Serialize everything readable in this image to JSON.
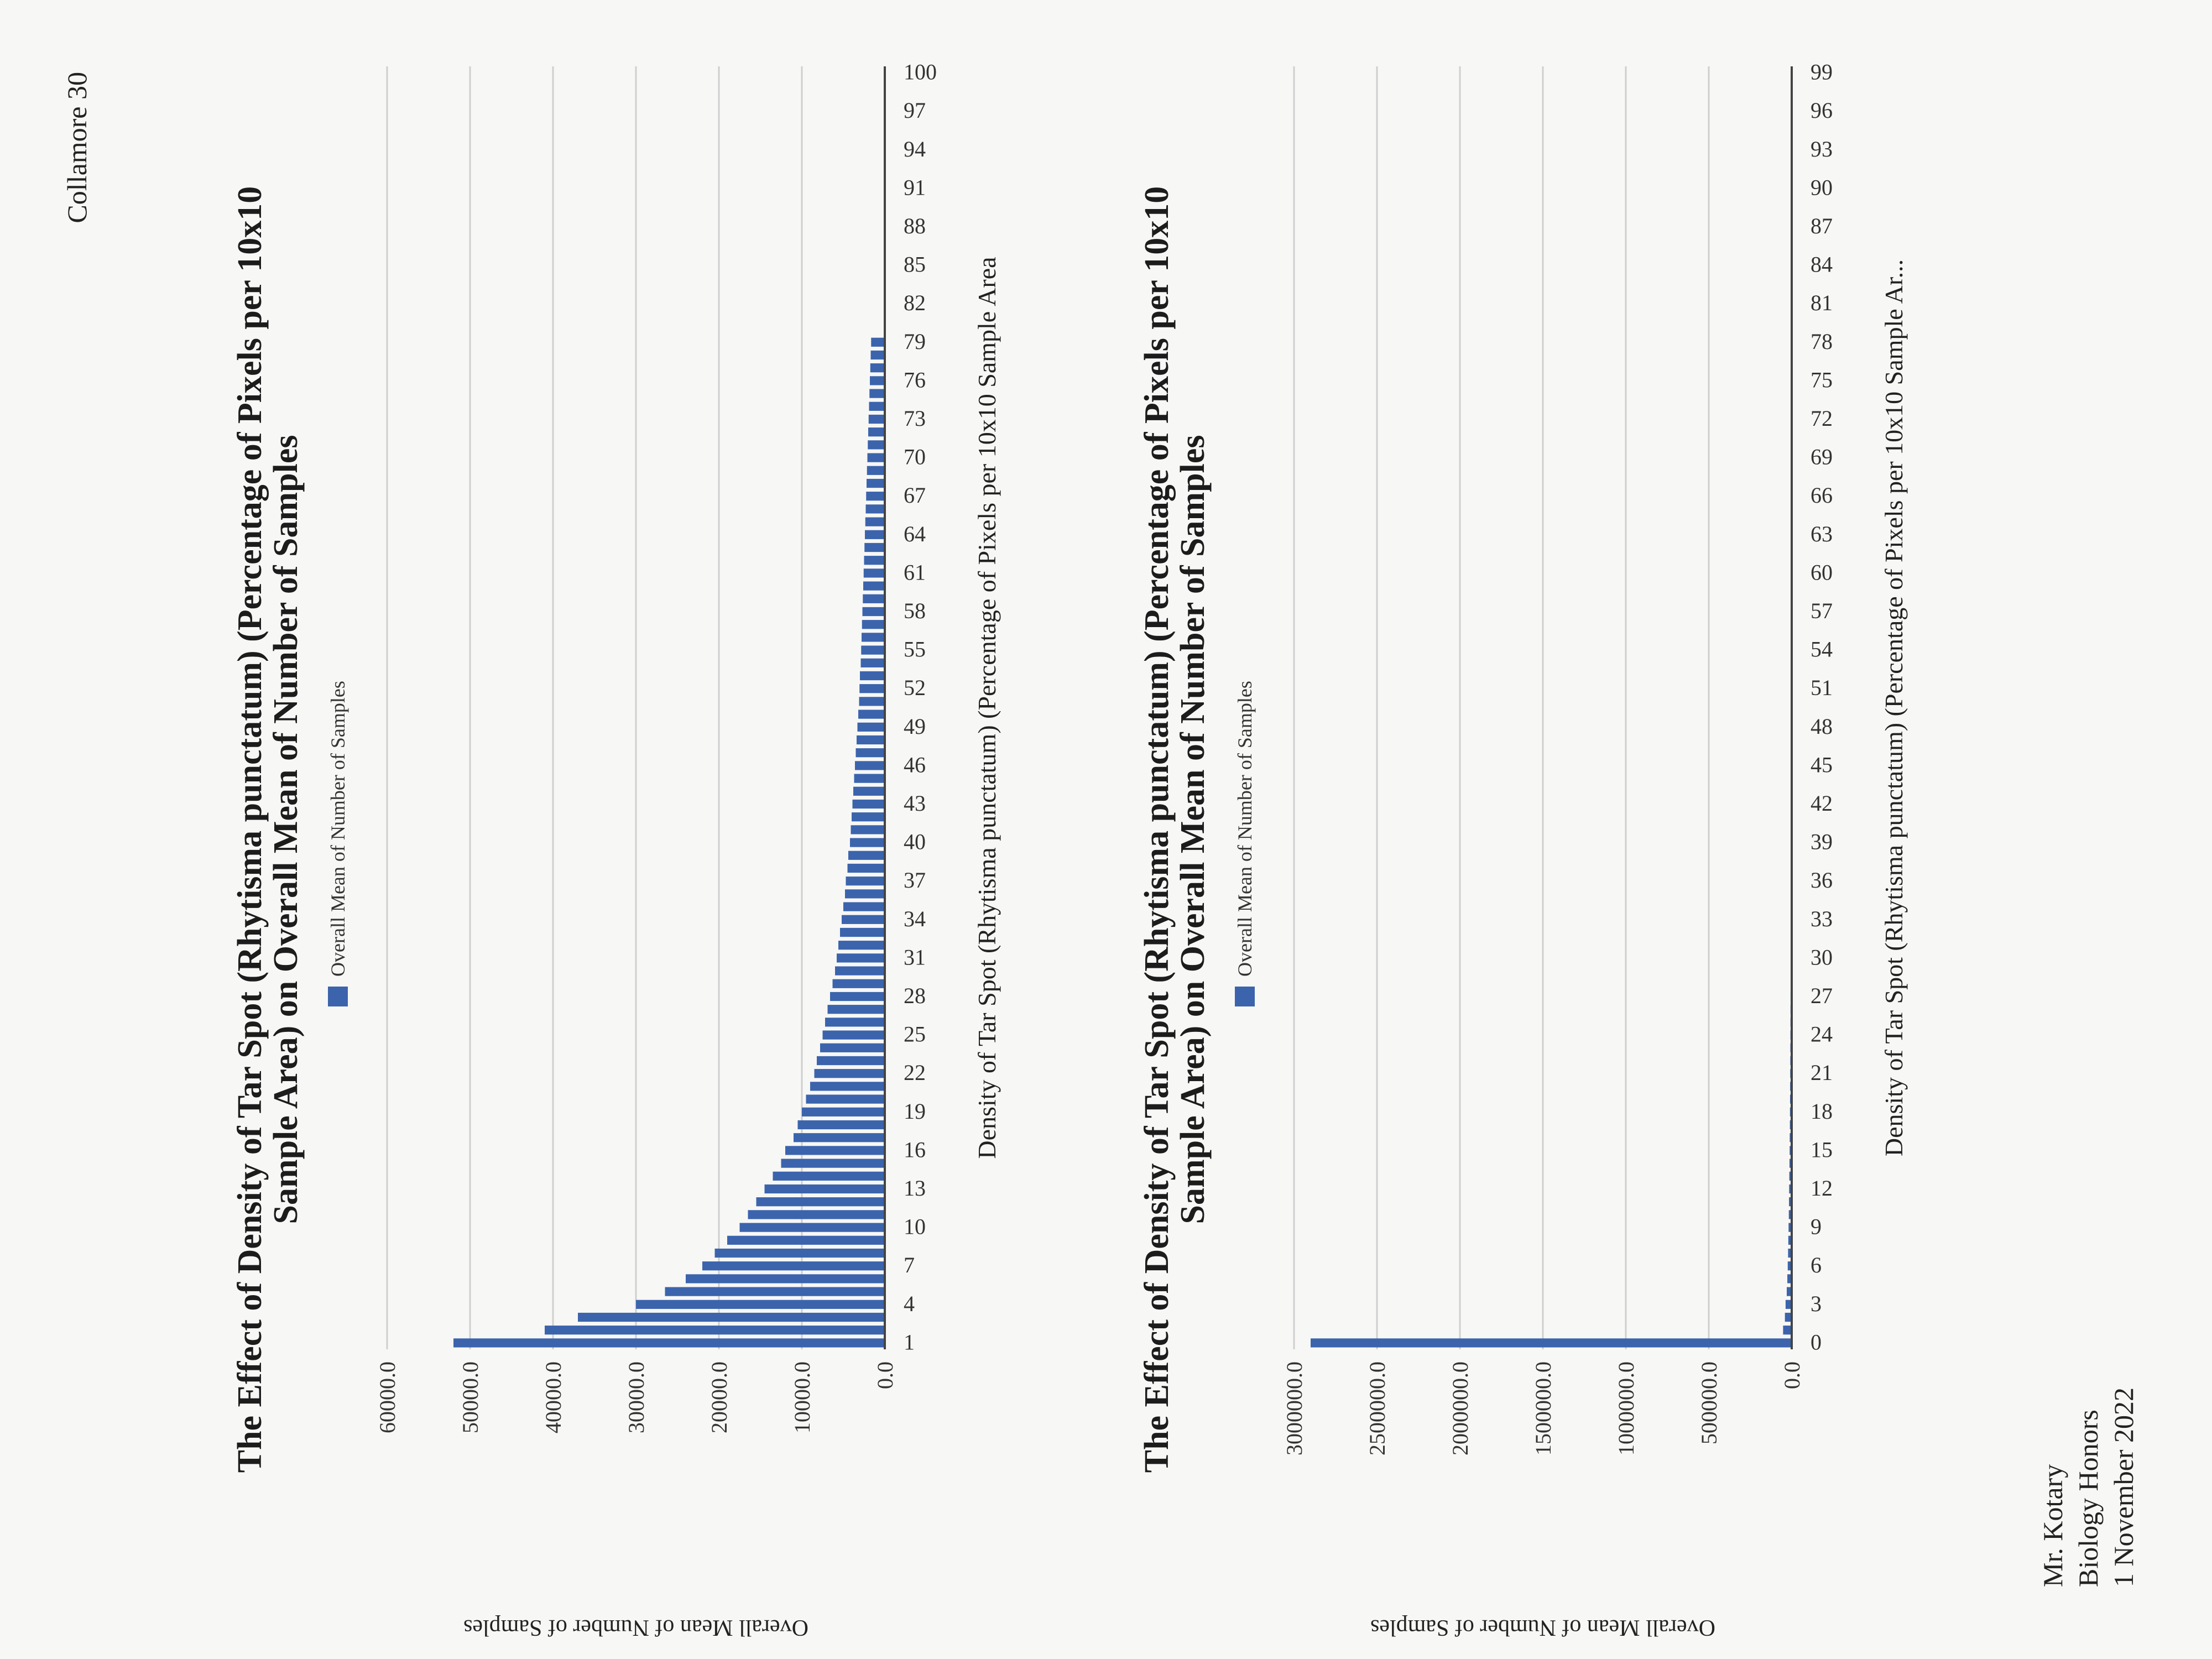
{
  "header": {
    "name": "Collamore 30"
  },
  "footer": {
    "teacher": "Mr. Kotary",
    "course": "Biology Honors",
    "date": "1 November 2022"
  },
  "chart_data": [
    {
      "type": "bar",
      "title": "The Effect of Density of Tar Spot (Rhytisma punctatum) (Percentage of Pixels per 10x10 Sample Area) on Overall Mean of Number of Samples",
      "legend": "Overall Mean of Number of Samples",
      "xlabel": "Density of Tar Spot (Rhytisma punctatum) (Percentage of Pixels per 10x10 Sample Area",
      "ylabel": "Overall Mean of Number of Samples",
      "x": [
        1,
        2,
        3,
        4,
        5,
        6,
        7,
        8,
        9,
        10,
        11,
        12,
        13,
        14,
        15,
        16,
        17,
        18,
        19,
        20,
        21,
        22,
        23,
        24,
        25,
        26,
        27,
        28,
        29,
        30,
        31,
        32,
        33,
        34,
        35,
        36,
        37,
        38,
        39,
        40,
        41,
        42,
        43,
        44,
        45,
        46,
        47,
        48,
        49,
        50,
        51,
        52,
        53,
        54,
        55,
        56,
        57,
        58,
        59,
        60,
        61,
        62,
        63,
        64,
        65,
        66,
        67,
        68,
        69,
        70,
        71,
        72,
        73,
        74,
        75,
        76,
        77,
        78,
        79,
        80,
        81,
        82,
        83,
        84,
        85,
        86,
        87,
        88,
        89,
        90,
        91,
        92,
        93,
        94,
        95,
        96,
        97,
        98,
        99,
        100
      ],
      "xticks": [
        "1",
        "4",
        "7",
        "10",
        "13",
        "16",
        "19",
        "22",
        "25",
        "28",
        "31",
        "34",
        "37",
        "40",
        "43",
        "46",
        "49",
        "52",
        "55",
        "58",
        "61",
        "64",
        "67",
        "70",
        "73",
        "76",
        "79",
        "82",
        "85",
        "88",
        "91",
        "94",
        "97",
        "100"
      ],
      "values": [
        52000,
        41000,
        37000,
        30000,
        26500,
        24000,
        22000,
        20500,
        19000,
        17500,
        16500,
        15500,
        14500,
        13500,
        12500,
        12000,
        11000,
        10500,
        10000,
        9500,
        9000,
        8500,
        8200,
        7800,
        7500,
        7200,
        6900,
        6600,
        6300,
        6000,
        5800,
        5600,
        5400,
        5200,
        5000,
        4800,
        4700,
        4500,
        4400,
        4200,
        4100,
        4000,
        3900,
        3800,
        3700,
        3600,
        3500,
        3400,
        3300,
        3200,
        3100,
        3050,
        3000,
        2900,
        2850,
        2800,
        2750,
        2700,
        2650,
        2600,
        2550,
        2500,
        2450,
        2400,
        2350,
        2300,
        2250,
        2200,
        2150,
        2100,
        2050,
        2000,
        1950,
        1900,
        1850,
        1800,
        1750,
        1700,
        1650,
        null,
        null,
        null,
        null,
        null,
        null,
        null,
        null,
        null,
        null,
        null,
        null,
        null,
        null,
        null,
        null,
        null,
        null,
        null,
        null,
        null
      ],
      "yticks": [
        "0.0",
        "10000.0",
        "20000.0",
        "30000.0",
        "40000.0",
        "50000.0",
        "60000.0"
      ],
      "ylim": [
        0,
        60000
      ],
      "color": "#3b64ad",
      "grid": true
    },
    {
      "type": "bar",
      "title": "The Effect of Density of Tar Spot (Rhytisma punctatum) (Percentage of Pixels per 10x10 Sample Area) on Overall Mean of Number of Samples",
      "legend": "Overall Mean of Number of Samples",
      "xlabel": "Density of Tar Spot (Rhytisma punctatum) (Percentage of Pixels per 10x10 Sample Ar...",
      "ylabel": "Overall Mean of Number of Samples",
      "x": [
        0,
        1,
        2,
        3,
        4,
        5,
        6,
        7,
        8,
        9,
        10,
        11,
        12,
        13,
        14,
        15,
        16,
        17,
        18,
        19,
        20,
        21,
        22,
        23,
        24,
        25,
        26,
        27,
        28,
        29,
        30,
        31,
        32,
        33,
        34,
        35,
        36,
        37,
        38,
        39,
        40,
        41,
        42,
        43,
        44,
        45,
        46,
        47,
        48,
        49,
        50,
        51,
        52,
        53,
        54,
        55,
        56,
        57,
        58,
        59,
        60,
        61,
        62,
        63,
        64,
        65,
        66,
        67,
        68,
        69,
        70,
        71,
        72,
        73,
        74,
        75,
        76,
        77,
        78,
        79,
        80,
        81,
        82,
        83,
        84,
        85,
        86,
        87,
        88,
        89,
        90,
        91,
        92,
        93,
        94,
        95,
        96,
        97,
        98,
        99
      ],
      "xticks": [
        "0",
        "3",
        "6",
        "9",
        "12",
        "15",
        "18",
        "21",
        "24",
        "27",
        "30",
        "33",
        "36",
        "39",
        "42",
        "45",
        "48",
        "51",
        "54",
        "57",
        "60",
        "63",
        "66",
        "69",
        "72",
        "75",
        "78",
        "81",
        "84",
        "87",
        "90",
        "93",
        "96",
        "99"
      ],
      "values": [
        2900000,
        52000,
        41000,
        37000,
        30000,
        26500,
        24000,
        22000,
        20500,
        19000,
        17500,
        16500,
        15500,
        14500,
        13500,
        12500,
        12000,
        11000,
        10500,
        10000,
        9500,
        9000,
        8500,
        8200,
        7800,
        7500,
        7200,
        6900,
        6600,
        6300,
        6000,
        5800,
        5600,
        5400,
        5200,
        5000,
        4800,
        4700,
        4500,
        4400,
        4200,
        4100,
        4000,
        3900,
        3800,
        3700,
        3600,
        3500,
        3400,
        3300,
        3200,
        3100,
        3050,
        3000,
        2900,
        2850,
        2800,
        2750,
        2700,
        2650,
        2600,
        2550,
        2500,
        2450,
        2400,
        2350,
        2300,
        2250,
        2200,
        2150,
        2100,
        2050,
        2000,
        1950,
        1900,
        1850,
        1800,
        1750,
        1700,
        1650,
        null,
        null,
        null,
        null,
        null,
        null,
        null,
        null,
        null,
        null,
        null,
        null,
        null,
        null,
        null,
        null,
        null,
        null,
        null,
        null
      ],
      "yticks": [
        "0.0",
        "500000.0",
        "1000000.0",
        "1500000.0",
        "2000000.0",
        "2500000.0",
        "3000000.0"
      ],
      "ylim": [
        0,
        3000000
      ],
      "color": "#3b64ad",
      "grid": true
    }
  ]
}
